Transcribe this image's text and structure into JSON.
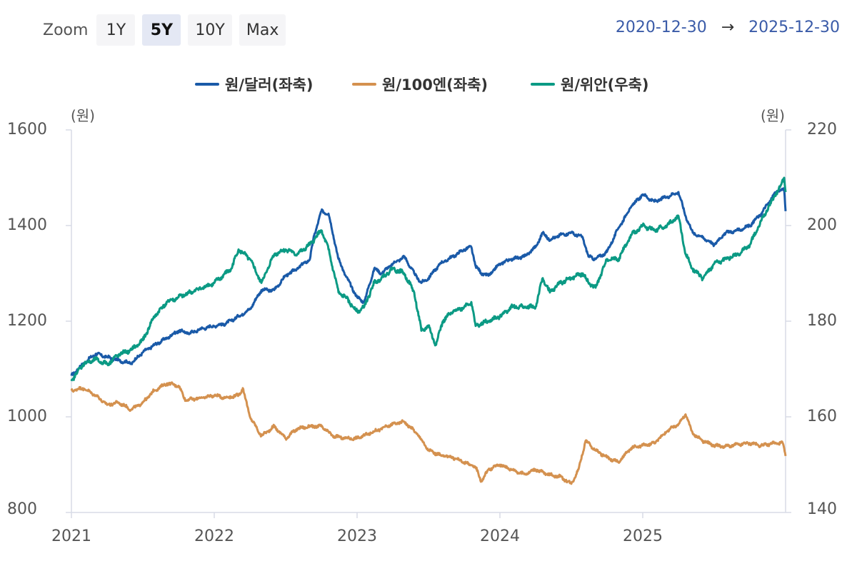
{
  "toolbar": {
    "zoom_label": "Zoom",
    "buttons": [
      "1Y",
      "5Y",
      "10Y",
      "Max"
    ],
    "active": "5Y"
  },
  "date_range": {
    "from": "2020-12-30",
    "arrow": "→",
    "to": "2025-12-30"
  },
  "chart_data": {
    "type": "line",
    "legend": [
      {
        "name": "원/달러(좌축)",
        "color": "#1a5aa8"
      },
      {
        "name": "원/100엔(좌축)",
        "color": "#d4914f"
      },
      {
        "name": "원/위안(우축)",
        "color": "#0b9a84"
      }
    ],
    "left_axis": {
      "unit": "(원)",
      "min": 800,
      "max": 1600,
      "ticks": [
        800,
        1000,
        1200,
        1400,
        1600
      ]
    },
    "right_axis": {
      "unit": "(원)",
      "min": 140,
      "max": 220,
      "ticks": [
        140,
        160,
        180,
        200,
        220
      ]
    },
    "x_axis": {
      "min": 2021.0,
      "max": 2026.0,
      "ticks": [
        "2021",
        "2022",
        "2023",
        "2024",
        "2025"
      ]
    },
    "series": [
      {
        "name": "원/달러(좌축)",
        "axis": "left",
        "color": "#1a5aa8",
        "points": [
          [
            2021.0,
            1086
          ],
          [
            2021.08,
            1110
          ],
          [
            2021.12,
            1120
          ],
          [
            2021.17,
            1132
          ],
          [
            2021.25,
            1125
          ],
          [
            2021.33,
            1118
          ],
          [
            2021.42,
            1112
          ],
          [
            2021.5,
            1135
          ],
          [
            2021.58,
            1150
          ],
          [
            2021.67,
            1165
          ],
          [
            2021.75,
            1180
          ],
          [
            2021.83,
            1175
          ],
          [
            2021.92,
            1185
          ],
          [
            2022.0,
            1190
          ],
          [
            2022.08,
            1195
          ],
          [
            2022.17,
            1210
          ],
          [
            2022.25,
            1225
          ],
          [
            2022.33,
            1265
          ],
          [
            2022.42,
            1265
          ],
          [
            2022.5,
            1295
          ],
          [
            2022.58,
            1310
          ],
          [
            2022.67,
            1330
          ],
          [
            2022.7,
            1380
          ],
          [
            2022.75,
            1430
          ],
          [
            2022.8,
            1425
          ],
          [
            2022.87,
            1330
          ],
          [
            2022.92,
            1295
          ],
          [
            2023.0,
            1250
          ],
          [
            2023.05,
            1240
          ],
          [
            2023.12,
            1310
          ],
          [
            2023.17,
            1300
          ],
          [
            2023.25,
            1320
          ],
          [
            2023.33,
            1335
          ],
          [
            2023.4,
            1300
          ],
          [
            2023.45,
            1280
          ],
          [
            2023.5,
            1290
          ],
          [
            2023.58,
            1320
          ],
          [
            2023.67,
            1335
          ],
          [
            2023.75,
            1350
          ],
          [
            2023.8,
            1355
          ],
          [
            2023.83,
            1315
          ],
          [
            2023.87,
            1300
          ],
          [
            2023.92,
            1295
          ],
          [
            2024.0,
            1320
          ],
          [
            2024.08,
            1330
          ],
          [
            2024.17,
            1335
          ],
          [
            2024.25,
            1355
          ],
          [
            2024.3,
            1385
          ],
          [
            2024.35,
            1370
          ],
          [
            2024.42,
            1380
          ],
          [
            2024.5,
            1385
          ],
          [
            2024.58,
            1375
          ],
          [
            2024.62,
            1335
          ],
          [
            2024.67,
            1330
          ],
          [
            2024.75,
            1345
          ],
          [
            2024.83,
            1395
          ],
          [
            2024.92,
            1440
          ],
          [
            2025.0,
            1465
          ],
          [
            2025.08,
            1450
          ],
          [
            2025.17,
            1460
          ],
          [
            2025.25,
            1470
          ],
          [
            2025.3,
            1420
          ],
          [
            2025.35,
            1385
          ],
          [
            2025.42,
            1375
          ],
          [
            2025.5,
            1360
          ],
          [
            2025.58,
            1385
          ],
          [
            2025.67,
            1390
          ],
          [
            2025.75,
            1400
          ],
          [
            2025.83,
            1425
          ],
          [
            2025.92,
            1465
          ],
          [
            2025.96,
            1475
          ],
          [
            2025.99,
            1475
          ],
          [
            2026.0,
            1430
          ]
        ]
      },
      {
        "name": "원/100엔(좌축)",
        "axis": "left",
        "color": "#d4914f",
        "points": [
          [
            2021.0,
            1055
          ],
          [
            2021.08,
            1060
          ],
          [
            2021.17,
            1045
          ],
          [
            2021.25,
            1025
          ],
          [
            2021.33,
            1030
          ],
          [
            2021.42,
            1015
          ],
          [
            2021.5,
            1030
          ],
          [
            2021.58,
            1055
          ],
          [
            2021.67,
            1070
          ],
          [
            2021.75,
            1065
          ],
          [
            2021.8,
            1035
          ],
          [
            2021.92,
            1040
          ],
          [
            2022.0,
            1045
          ],
          [
            2022.08,
            1040
          ],
          [
            2022.17,
            1045
          ],
          [
            2022.2,
            1060
          ],
          [
            2022.25,
            1000
          ],
          [
            2022.3,
            975
          ],
          [
            2022.33,
            960
          ],
          [
            2022.42,
            980
          ],
          [
            2022.5,
            955
          ],
          [
            2022.58,
            975
          ],
          [
            2022.67,
            980
          ],
          [
            2022.75,
            980
          ],
          [
            2022.83,
            960
          ],
          [
            2022.92,
            955
          ],
          [
            2023.0,
            955
          ],
          [
            2023.08,
            965
          ],
          [
            2023.17,
            975
          ],
          [
            2023.25,
            985
          ],
          [
            2023.33,
            990
          ],
          [
            2023.42,
            965
          ],
          [
            2023.5,
            930
          ],
          [
            2023.58,
            920
          ],
          [
            2023.67,
            915
          ],
          [
            2023.75,
            905
          ],
          [
            2023.83,
            895
          ],
          [
            2023.87,
            865
          ],
          [
            2023.92,
            890
          ],
          [
            2024.0,
            900
          ],
          [
            2024.08,
            890
          ],
          [
            2024.17,
            880
          ],
          [
            2024.25,
            890
          ],
          [
            2024.33,
            880
          ],
          [
            2024.42,
            875
          ],
          [
            2024.5,
            860
          ],
          [
            2024.55,
            890
          ],
          [
            2024.6,
            950
          ],
          [
            2024.67,
            930
          ],
          [
            2024.75,
            915
          ],
          [
            2024.83,
            905
          ],
          [
            2024.92,
            935
          ],
          [
            2025.0,
            940
          ],
          [
            2025.08,
            945
          ],
          [
            2025.17,
            970
          ],
          [
            2025.25,
            985
          ],
          [
            2025.3,
            1005
          ],
          [
            2025.35,
            965
          ],
          [
            2025.42,
            950
          ],
          [
            2025.5,
            940
          ],
          [
            2025.58,
            938
          ],
          [
            2025.67,
            942
          ],
          [
            2025.75,
            945
          ],
          [
            2025.83,
            940
          ],
          [
            2025.92,
            945
          ],
          [
            2025.98,
            945
          ],
          [
            2026.0,
            918
          ]
        ]
      },
      {
        "name": "원/위안(우축)",
        "axis": "right",
        "color": "#0b9a84",
        "points": [
          [
            2021.0,
            167.5
          ],
          [
            2021.08,
            171
          ],
          [
            2021.17,
            172
          ],
          [
            2021.25,
            171
          ],
          [
            2021.33,
            173
          ],
          [
            2021.42,
            174
          ],
          [
            2021.5,
            176
          ],
          [
            2021.58,
            181
          ],
          [
            2021.67,
            184
          ],
          [
            2021.75,
            185
          ],
          [
            2021.83,
            186
          ],
          [
            2021.92,
            187
          ],
          [
            2022.0,
            188
          ],
          [
            2022.08,
            190
          ],
          [
            2022.12,
            191
          ],
          [
            2022.17,
            195
          ],
          [
            2022.25,
            193
          ],
          [
            2022.33,
            188
          ],
          [
            2022.42,
            194
          ],
          [
            2022.5,
            195
          ],
          [
            2022.58,
            194
          ],
          [
            2022.67,
            196
          ],
          [
            2022.75,
            199
          ],
          [
            2022.8,
            195
          ],
          [
            2022.87,
            186
          ],
          [
            2022.92,
            185
          ],
          [
            2023.0,
            182
          ],
          [
            2023.05,
            183
          ],
          [
            2023.12,
            188
          ],
          [
            2023.17,
            189
          ],
          [
            2023.25,
            191
          ],
          [
            2023.33,
            190
          ],
          [
            2023.4,
            186
          ],
          [
            2023.45,
            178
          ],
          [
            2023.5,
            179
          ],
          [
            2023.55,
            175
          ],
          [
            2023.6,
            180
          ],
          [
            2023.67,
            182
          ],
          [
            2023.75,
            183
          ],
          [
            2023.8,
            184
          ],
          [
            2023.83,
            179
          ],
          [
            2023.92,
            180
          ],
          [
            2024.0,
            181
          ],
          [
            2024.08,
            183
          ],
          [
            2024.17,
            183
          ],
          [
            2024.25,
            183
          ],
          [
            2024.3,
            189
          ],
          [
            2024.35,
            186
          ],
          [
            2024.42,
            188
          ],
          [
            2024.5,
            189
          ],
          [
            2024.58,
            190
          ],
          [
            2024.62,
            188
          ],
          [
            2024.67,
            187
          ],
          [
            2024.75,
            193
          ],
          [
            2024.83,
            193
          ],
          [
            2024.92,
            198
          ],
          [
            2025.0,
            200
          ],
          [
            2025.08,
            199
          ],
          [
            2025.17,
            200
          ],
          [
            2025.25,
            202
          ],
          [
            2025.3,
            194
          ],
          [
            2025.35,
            191
          ],
          [
            2025.42,
            189
          ],
          [
            2025.5,
            192
          ],
          [
            2025.58,
            193
          ],
          [
            2025.67,
            194
          ],
          [
            2025.75,
            196
          ],
          [
            2025.83,
            201
          ],
          [
            2025.92,
            206
          ],
          [
            2025.96,
            208
          ],
          [
            2025.99,
            210
          ],
          [
            2026.0,
            207
          ]
        ]
      }
    ]
  }
}
